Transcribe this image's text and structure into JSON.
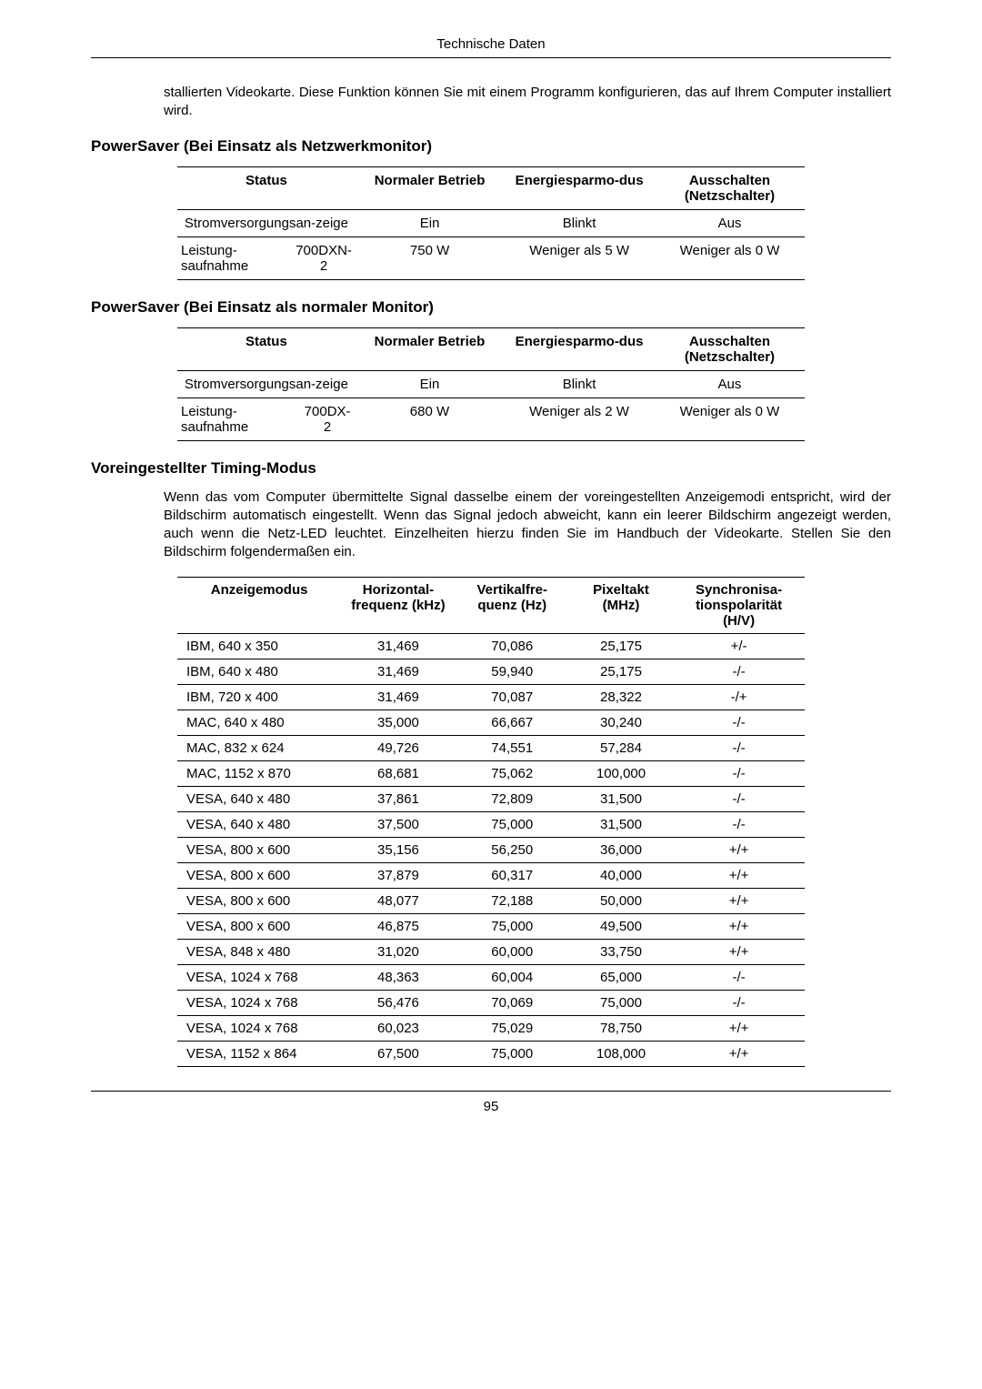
{
  "header": {
    "title": "Technische Daten"
  },
  "intro": {
    "text": "stallierten Videokarte. Diese Funktion können Sie mit einem Programm konfigurieren, das auf Ihrem Computer installiert wird."
  },
  "ps1": {
    "heading": "PowerSaver (Bei Einsatz als Netzwerkmonitor)",
    "headers": {
      "status": "Status",
      "normal": "Normaler Betrieb",
      "esm": "Energiesparmo-dus",
      "off": "Ausschalten (Netzschalter)"
    },
    "row1": {
      "label": "Stromversorgungsan-zeige",
      "normal": "Ein",
      "esm": "Blinkt",
      "off": "Aus"
    },
    "row2": {
      "label1": "Leistung-saufnahme",
      "label2": "700DXN-2",
      "normal": "750 W",
      "esm": "Weniger als 5 W",
      "off": "Weniger als 0 W"
    }
  },
  "ps2": {
    "heading": "PowerSaver (Bei Einsatz als normaler Monitor)",
    "headers": {
      "status": "Status",
      "normal": "Normaler Betrieb",
      "esm": "Energiesparmo-dus",
      "off": "Ausschalten (Netzschalter)"
    },
    "row1": {
      "label": "Stromversorgungsan-zeige",
      "normal": "Ein",
      "esm": "Blinkt",
      "off": "Aus"
    },
    "row2": {
      "label1": "Leistung-saufnahme",
      "label2": "700DX-2",
      "normal": "680 W",
      "esm": "Weniger als 2 W",
      "off": "Weniger als 0 W"
    }
  },
  "timing": {
    "heading": "Voreingestellter Timing-Modus",
    "para": "Wenn das vom Computer übermittelte Signal dasselbe einem der voreingestellten Anzeigemodi entspricht, wird der Bildschirm automatisch eingestellt. Wenn das Signal jedoch abweicht, kann ein leerer Bildschirm angezeigt werden, auch wenn die Netz-LED leuchtet. Einzelheiten hierzu finden Sie im Handbuch der Videokarte. Stellen Sie den Bildschirm folgendermaßen ein.",
    "headers": {
      "mode": "Anzeigemodus",
      "hf": "Horizontal-frequenz (kHz)",
      "vf": "Vertikalfre-quenz (Hz)",
      "px": "Pixeltakt (MHz)",
      "sync": "Synchronisa-tionspolarität (H/V)"
    },
    "rows": [
      {
        "mode": "IBM, 640 x 350",
        "hf": "31,469",
        "vf": "70,086",
        "px": "25,175",
        "sync": "+/-"
      },
      {
        "mode": "IBM, 640 x 480",
        "hf": "31,469",
        "vf": "59,940",
        "px": "25,175",
        "sync": "-/-"
      },
      {
        "mode": "IBM, 720 x 400",
        "hf": "31,469",
        "vf": "70,087",
        "px": "28,322",
        "sync": "-/+"
      },
      {
        "mode": "MAC, 640 x 480",
        "hf": "35,000",
        "vf": "66,667",
        "px": "30,240",
        "sync": "-/-"
      },
      {
        "mode": "MAC, 832 x 624",
        "hf": "49,726",
        "vf": "74,551",
        "px": "57,284",
        "sync": "-/-"
      },
      {
        "mode": "MAC, 1152 x 870",
        "hf": "68,681",
        "vf": "75,062",
        "px": "100,000",
        "sync": "-/-"
      },
      {
        "mode": "VESA, 640 x 480",
        "hf": "37,861",
        "vf": "72,809",
        "px": "31,500",
        "sync": "-/-"
      },
      {
        "mode": "VESA, 640 x 480",
        "hf": "37,500",
        "vf": "75,000",
        "px": "31,500",
        "sync": "-/-"
      },
      {
        "mode": "VESA, 800 x 600",
        "hf": "35,156",
        "vf": "56,250",
        "px": "36,000",
        "sync": "+/+"
      },
      {
        "mode": "VESA, 800 x 600",
        "hf": "37,879",
        "vf": "60,317",
        "px": "40,000",
        "sync": "+/+"
      },
      {
        "mode": "VESA, 800 x 600",
        "hf": "48,077",
        "vf": "72,188",
        "px": "50,000",
        "sync": "+/+"
      },
      {
        "mode": "VESA, 800 x 600",
        "hf": "46,875",
        "vf": "75,000",
        "px": "49,500",
        "sync": "+/+"
      },
      {
        "mode": "VESA, 848 x 480",
        "hf": "31,020",
        "vf": "60,000",
        "px": "33,750",
        "sync": "+/+"
      },
      {
        "mode": "VESA, 1024 x 768",
        "hf": "48,363",
        "vf": "60,004",
        "px": "65,000",
        "sync": "-/-"
      },
      {
        "mode": "VESA, 1024 x 768",
        "hf": "56,476",
        "vf": "70,069",
        "px": "75,000",
        "sync": "-/-"
      },
      {
        "mode": "VESA, 1024 x 768",
        "hf": "60,023",
        "vf": "75,029",
        "px": "78,750",
        "sync": "+/+"
      },
      {
        "mode": "VESA, 1152 x 864",
        "hf": "67,500",
        "vf": "75,000",
        "px": "108,000",
        "sync": "+/+"
      }
    ]
  },
  "footer": {
    "page": "95"
  }
}
